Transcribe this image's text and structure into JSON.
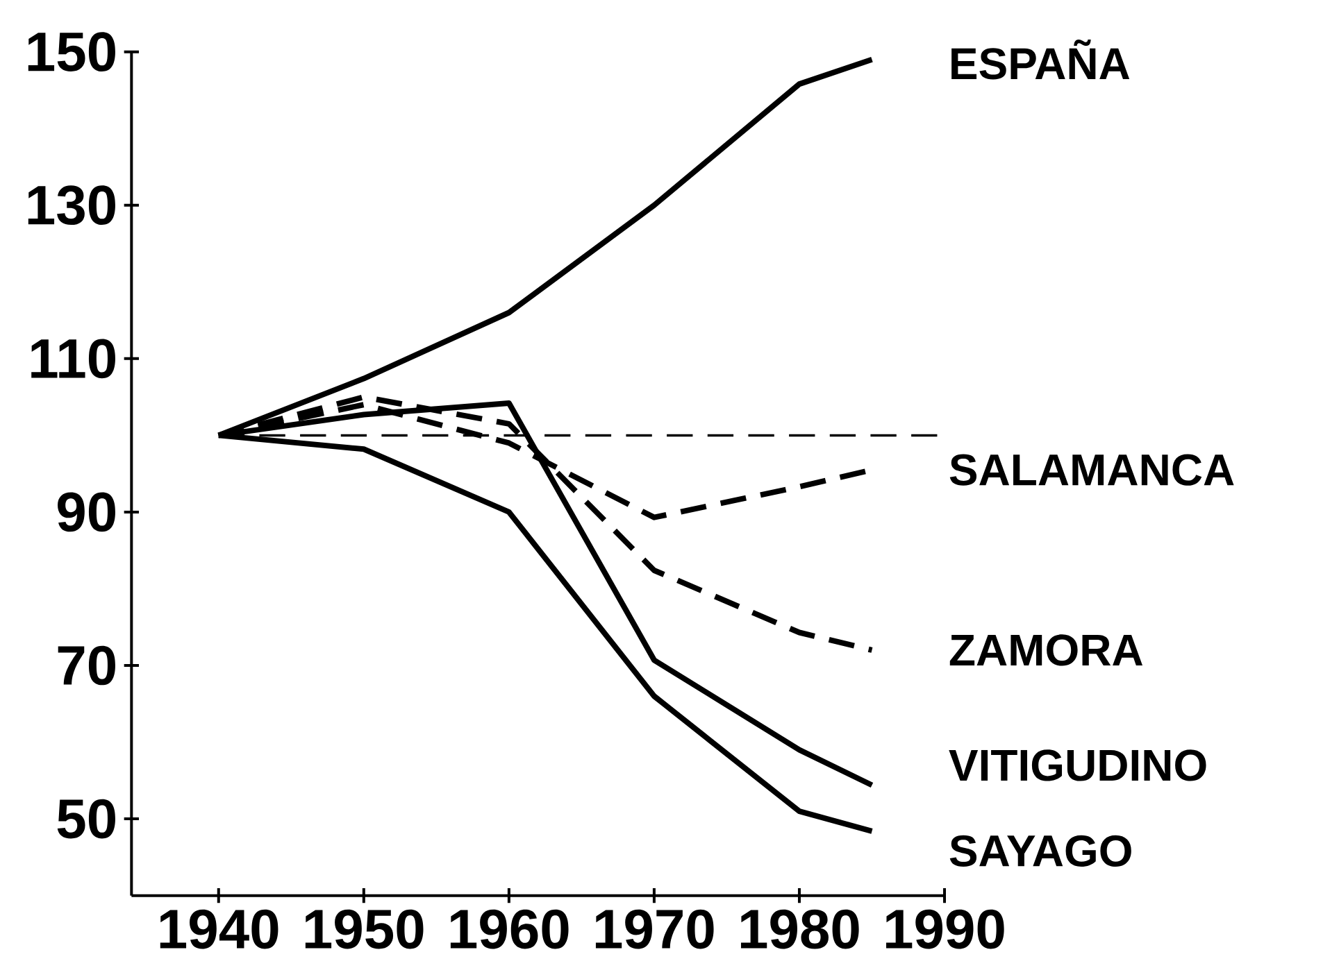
{
  "chart_data": {
    "type": "line",
    "x": [
      1940,
      1950,
      1960,
      1970,
      1980,
      1985
    ],
    "series": [
      {
        "name": "ESPAÑA",
        "color": "#000000",
        "line_style": "solid",
        "values": [
          100,
          107.4,
          116,
          130,
          145.8,
          149
        ]
      },
      {
        "name": "SALAMANCA",
        "color": "#000000",
        "line_style": "dashed",
        "values": [
          100,
          104,
          99,
          89.3,
          93.3,
          95.5
        ]
      },
      {
        "name": "ZAMORA",
        "color": "#000000",
        "line_style": "dashed",
        "values": [
          100,
          105,
          101.5,
          82.4,
          74.3,
          72
        ]
      },
      {
        "name": "VITIGUDINO",
        "color": "#000000",
        "line_style": "solid",
        "values": [
          100,
          102.7,
          104.2,
          70.7,
          59,
          54.4
        ]
      },
      {
        "name": "SAYAGO",
        "color": "#000000",
        "line_style": "solid",
        "values": [
          100,
          98.2,
          90,
          66,
          51,
          48.4
        ]
      }
    ],
    "xlim": [
      1934,
      1990
    ],
    "ylim": [
      40,
      150
    ],
    "xticks": [
      1940,
      1950,
      1960,
      1970,
      1980,
      1990
    ],
    "yticks": [
      50,
      70,
      90,
      110,
      130,
      150
    ],
    "ref_lines": [
      {
        "axis": "y",
        "value": 100,
        "line_style": "dashed",
        "color": "#000000"
      }
    ],
    "legend": false,
    "grid": false,
    "marker": "none"
  }
}
